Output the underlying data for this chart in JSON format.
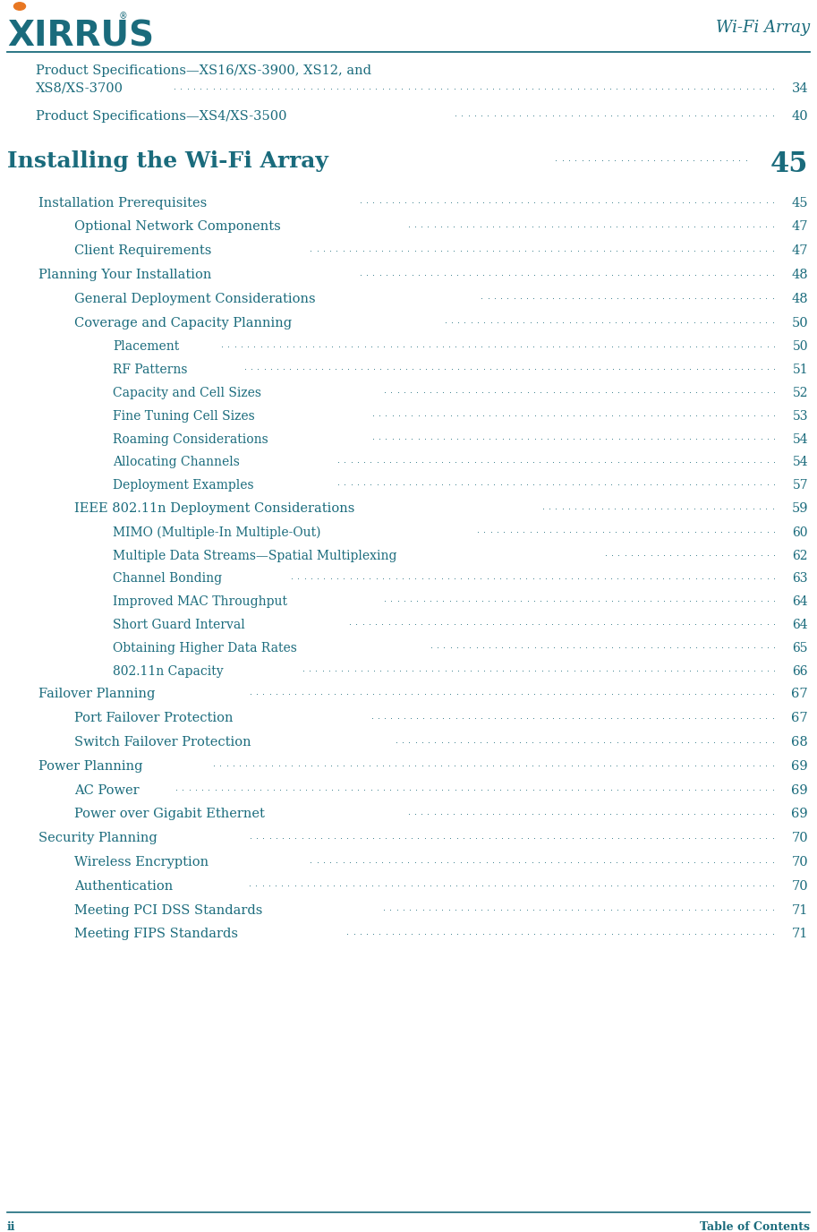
{
  "teal_color": "#1a6b7c",
  "orange_color": "#e87722",
  "bg_color": "#ffffff",
  "header_text": "Wi-Fi Array",
  "footer_left": "ii",
  "footer_right": "Table of Contents",
  "page_width": 9.13,
  "page_height": 13.76,
  "dpi": 100,
  "entries": [
    {
      "level": 0,
      "text": "Product Specifications—XS16/XS-3900, XS12, and",
      "text2": "XS8/XS-3700",
      "page": "34",
      "bold": false,
      "large": false,
      "indent_in": 0.32,
      "two_line": true
    },
    {
      "level": 0,
      "text": "Product Specifications—XS4/XS-3500 ",
      "page": "40",
      "bold": false,
      "large": false,
      "indent_in": 0.32,
      "two_line": false
    },
    {
      "level": -1,
      "text": "Installing the Wi-Fi Array",
      "page": "45",
      "bold": true,
      "large": true,
      "indent_in": 0.0,
      "two_line": false
    },
    {
      "level": 1,
      "text": "Installation Prerequisites ",
      "page": "45",
      "bold": false,
      "large": false,
      "indent_in": 0.35,
      "two_line": false
    },
    {
      "level": 2,
      "text": "Optional Network Components",
      "page": "47",
      "bold": false,
      "large": false,
      "indent_in": 0.75,
      "two_line": false
    },
    {
      "level": 2,
      "text": "Client Requirements",
      "page": "47",
      "bold": false,
      "large": false,
      "indent_in": 0.75,
      "two_line": false
    },
    {
      "level": 1,
      "text": "Planning Your Installation",
      "page": "48",
      "bold": false,
      "large": false,
      "indent_in": 0.35,
      "two_line": false
    },
    {
      "level": 2,
      "text": "General Deployment Considerations ",
      "page": "48",
      "bold": false,
      "large": false,
      "indent_in": 0.75,
      "two_line": false
    },
    {
      "level": 2,
      "text": "Coverage and Capacity Planning",
      "page": "50",
      "bold": false,
      "large": false,
      "indent_in": 0.75,
      "two_line": false
    },
    {
      "level": 3,
      "text": "Placement",
      "page": "50",
      "bold": false,
      "large": false,
      "indent_in": 1.18,
      "two_line": false
    },
    {
      "level": 3,
      "text": "RF Patterns",
      "page": "51",
      "bold": false,
      "large": false,
      "indent_in": 1.18,
      "two_line": false
    },
    {
      "level": 3,
      "text": "Capacity and Cell Sizes",
      "page": "52",
      "bold": false,
      "large": false,
      "indent_in": 1.18,
      "two_line": false
    },
    {
      "level": 3,
      "text": "Fine Tuning Cell Sizes",
      "page": "53",
      "bold": false,
      "large": false,
      "indent_in": 1.18,
      "two_line": false
    },
    {
      "level": 3,
      "text": "Roaming Considerations ",
      "page": "54",
      "bold": false,
      "large": false,
      "indent_in": 1.18,
      "two_line": false
    },
    {
      "level": 3,
      "text": "Allocating Channels",
      "page": "54",
      "bold": false,
      "large": false,
      "indent_in": 1.18,
      "two_line": false
    },
    {
      "level": 3,
      "text": "Deployment Examples",
      "page": "57",
      "bold": false,
      "large": false,
      "indent_in": 1.18,
      "two_line": false
    },
    {
      "level": 2,
      "text": "IEEE 802.11n Deployment Considerations ",
      "page": "59",
      "bold": false,
      "large": false,
      "indent_in": 0.75,
      "two_line": false
    },
    {
      "level": 3,
      "text": "MIMO (Multiple-In Multiple-Out)",
      "page": "60",
      "bold": false,
      "large": false,
      "indent_in": 1.18,
      "two_line": false
    },
    {
      "level": 3,
      "text": "Multiple Data Streams—Spatial Multiplexing ",
      "page": "62",
      "bold": false,
      "large": false,
      "indent_in": 1.18,
      "two_line": false
    },
    {
      "level": 3,
      "text": "Channel Bonding ",
      "page": "63",
      "bold": false,
      "large": false,
      "indent_in": 1.18,
      "two_line": false
    },
    {
      "level": 3,
      "text": "Improved MAC Throughput ",
      "page": "64",
      "bold": false,
      "large": false,
      "indent_in": 1.18,
      "two_line": false
    },
    {
      "level": 3,
      "text": "Short Guard Interval ",
      "page": "64",
      "bold": false,
      "large": false,
      "indent_in": 1.18,
      "two_line": false
    },
    {
      "level": 3,
      "text": "Obtaining Higher Data Rates",
      "page": "65",
      "bold": false,
      "large": false,
      "indent_in": 1.18,
      "two_line": false
    },
    {
      "level": 3,
      "text": "802.11n Capacity ",
      "page": "66",
      "bold": false,
      "large": false,
      "indent_in": 1.18,
      "two_line": false
    },
    {
      "level": 1,
      "text": "Failover Planning",
      "page": "67",
      "bold": false,
      "large": false,
      "indent_in": 0.35,
      "two_line": false
    },
    {
      "level": 2,
      "text": "Port Failover Protection ",
      "page": "67",
      "bold": false,
      "large": false,
      "indent_in": 0.75,
      "two_line": false
    },
    {
      "level": 2,
      "text": "Switch Failover Protection ",
      "page": "68",
      "bold": false,
      "large": false,
      "indent_in": 0.75,
      "two_line": false
    },
    {
      "level": 1,
      "text": "Power Planning ",
      "page": "69",
      "bold": false,
      "large": false,
      "indent_in": 0.35,
      "two_line": false
    },
    {
      "level": 2,
      "text": "AC Power",
      "page": "69",
      "bold": false,
      "large": false,
      "indent_in": 0.75,
      "two_line": false
    },
    {
      "level": 2,
      "text": "Power over Gigabit Ethernet ",
      "page": "69",
      "bold": false,
      "large": false,
      "indent_in": 0.75,
      "two_line": false
    },
    {
      "level": 1,
      "text": "Security Planning",
      "page": "70",
      "bold": false,
      "large": false,
      "indent_in": 0.35,
      "two_line": false
    },
    {
      "level": 2,
      "text": "Wireless Encryption ",
      "page": "70",
      "bold": false,
      "large": false,
      "indent_in": 0.75,
      "two_line": false
    },
    {
      "level": 2,
      "text": "Authentication ",
      "page": "70",
      "bold": false,
      "large": false,
      "indent_in": 0.75,
      "two_line": false
    },
    {
      "level": 2,
      "text": "Meeting PCI DSS Standards",
      "page": "71",
      "bold": false,
      "large": false,
      "indent_in": 0.75,
      "two_line": false
    },
    {
      "level": 2,
      "text": "Meeting FIPS Standards ",
      "page": "71",
      "bold": false,
      "large": false,
      "indent_in": 0.75,
      "two_line": false
    }
  ]
}
